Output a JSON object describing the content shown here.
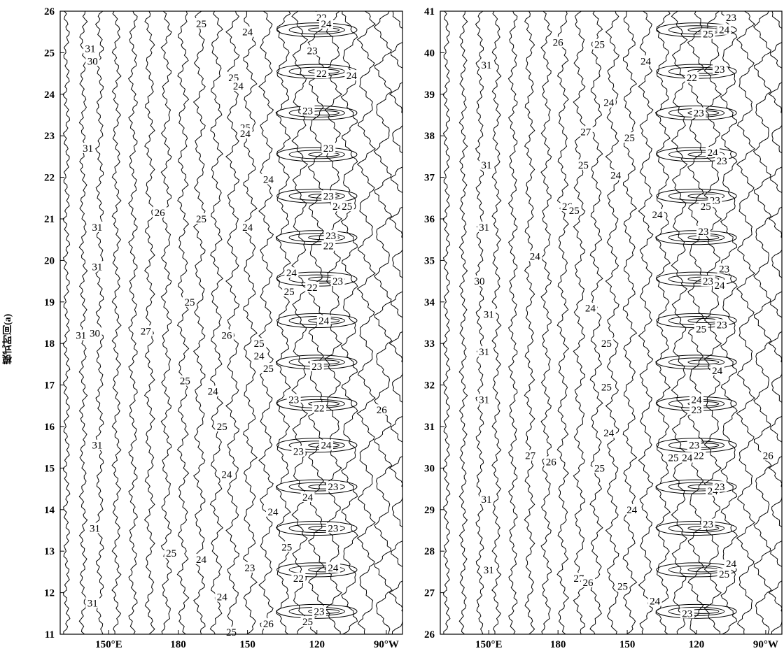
{
  "chart_data": [
    {
      "type": "contour",
      "ylabel": "模式时间(a)",
      "ylim": [
        11,
        26
      ],
      "yticks": [
        11,
        12,
        13,
        14,
        15,
        16,
        17,
        18,
        19,
        20,
        21,
        22,
        23,
        24,
        25,
        26
      ],
      "xlabels": [
        "150°E",
        "180",
        "150",
        "120",
        "90°W"
      ],
      "contour_labels": [
        {
          "v": "31",
          "lon": 142,
          "yr": 25.1
        },
        {
          "v": "30",
          "lon": 143,
          "yr": 24.8
        },
        {
          "v": "25",
          "lon": 190,
          "yr": 25.7
        },
        {
          "v": "24",
          "lon": 210,
          "yr": 25.5
        },
        {
          "v": "22",
          "lon": 242,
          "yr": 25.85
        },
        {
          "v": "24",
          "lon": 244,
          "yr": 25.7
        },
        {
          "v": "23",
          "lon": 238,
          "yr": 25.05
        },
        {
          "v": "22",
          "lon": 242,
          "yr": 24.5
        },
        {
          "v": "24",
          "lon": 255,
          "yr": 24.45
        },
        {
          "v": "25",
          "lon": 204,
          "yr": 24.4
        },
        {
          "v": "24",
          "lon": 206,
          "yr": 24.2
        },
        {
          "v": "23",
          "lon": 236,
          "yr": 23.6
        },
        {
          "v": "31",
          "lon": 141,
          "yr": 22.7
        },
        {
          "v": "25",
          "lon": 209,
          "yr": 23.2
        },
        {
          "v": "24",
          "lon": 209,
          "yr": 23.05
        },
        {
          "v": "23",
          "lon": 245,
          "yr": 22.7
        },
        {
          "v": "24",
          "lon": 219,
          "yr": 21.95
        },
        {
          "v": "23",
          "lon": 245,
          "yr": 21.55
        },
        {
          "v": "24",
          "lon": 249,
          "yr": 21.3
        },
        {
          "v": "25",
          "lon": 253,
          "yr": 21.3
        },
        {
          "v": "26",
          "lon": 172,
          "yr": 21.15
        },
        {
          "v": "25",
          "lon": 190,
          "yr": 21.0
        },
        {
          "v": "24",
          "lon": 210,
          "yr": 20.8
        },
        {
          "v": "31",
          "lon": 145,
          "yr": 20.8
        },
        {
          "v": "23",
          "lon": 246,
          "yr": 20.6
        },
        {
          "v": "22",
          "lon": 245,
          "yr": 20.35
        },
        {
          "v": "31",
          "lon": 145,
          "yr": 19.85
        },
        {
          "v": "24",
          "lon": 229,
          "yr": 19.7
        },
        {
          "v": "23",
          "lon": 249,
          "yr": 19.5
        },
        {
          "v": "22",
          "lon": 238,
          "yr": 19.35
        },
        {
          "v": "25",
          "lon": 228,
          "yr": 19.25
        },
        {
          "v": "25",
          "lon": 185,
          "yr": 19.0
        },
        {
          "v": "24",
          "lon": 243,
          "yr": 18.55
        },
        {
          "v": "31",
          "lon": 138,
          "yr": 18.2
        },
        {
          "v": "30",
          "lon": 144,
          "yr": 18.25
        },
        {
          "v": "27",
          "lon": 166,
          "yr": 18.3
        },
        {
          "v": "26",
          "lon": 201,
          "yr": 18.2
        },
        {
          "v": "25",
          "lon": 215,
          "yr": 18.0
        },
        {
          "v": "24",
          "lon": 215,
          "yr": 17.7
        },
        {
          "v": "25",
          "lon": 219,
          "yr": 17.4
        },
        {
          "v": "23",
          "lon": 240,
          "yr": 17.45
        },
        {
          "v": "25",
          "lon": 183,
          "yr": 17.1
        },
        {
          "v": "24",
          "lon": 195,
          "yr": 16.85
        },
        {
          "v": "23",
          "lon": 230,
          "yr": 16.65
        },
        {
          "v": "22",
          "lon": 241,
          "yr": 16.45
        },
        {
          "v": "26",
          "lon": 268,
          "yr": 16.4
        },
        {
          "v": "25",
          "lon": 199,
          "yr": 16.0
        },
        {
          "v": "31",
          "lon": 145,
          "yr": 15.55
        },
        {
          "v": "24",
          "lon": 244,
          "yr": 15.55
        },
        {
          "v": "23",
          "lon": 232,
          "yr": 15.4
        },
        {
          "v": "24",
          "lon": 201,
          "yr": 14.85
        },
        {
          "v": "23",
          "lon": 247,
          "yr": 14.55
        },
        {
          "v": "24",
          "lon": 236,
          "yr": 14.3
        },
        {
          "v": "24",
          "lon": 221,
          "yr": 13.95
        },
        {
          "v": "31",
          "lon": 144,
          "yr": 13.55
        },
        {
          "v": "23",
          "lon": 247,
          "yr": 13.55
        },
        {
          "v": "25",
          "lon": 227,
          "yr": 13.1
        },
        {
          "v": "25",
          "lon": 177,
          "yr": 12.95
        },
        {
          "v": "24",
          "lon": 190,
          "yr": 12.8
        },
        {
          "v": "23",
          "lon": 211,
          "yr": 12.6
        },
        {
          "v": "24",
          "lon": 247,
          "yr": 12.6
        },
        {
          "v": "22",
          "lon": 232,
          "yr": 12.35
        },
        {
          "v": "24",
          "lon": 199,
          "yr": 11.9
        },
        {
          "v": "31",
          "lon": 143,
          "yr": 11.75
        },
        {
          "v": "23",
          "lon": 241,
          "yr": 11.55
        },
        {
          "v": "25",
          "lon": 236,
          "yr": 11.3
        },
        {
          "v": "26",
          "lon": 219,
          "yr": 11.25
        },
        {
          "v": "25",
          "lon": 203,
          "yr": 11.05
        }
      ]
    },
    {
      "type": "contour",
      "ylim": [
        26,
        41
      ],
      "yticks": [
        26,
        27,
        28,
        29,
        30,
        31,
        32,
        33,
        34,
        35,
        36,
        37,
        38,
        39,
        40,
        41
      ],
      "xlabels": [
        "150°E",
        "180",
        "150",
        "120",
        "90°W"
      ],
      "contour_labels": [
        {
          "v": "23",
          "lon": 255,
          "yr": 40.85
        },
        {
          "v": "24",
          "lon": 252,
          "yr": 40.55
        },
        {
          "v": "25",
          "lon": 245,
          "yr": 40.45
        },
        {
          "v": "26",
          "lon": 180,
          "yr": 40.25
        },
        {
          "v": "25",
          "lon": 198,
          "yr": 40.2
        },
        {
          "v": "31",
          "lon": 149,
          "yr": 39.7
        },
        {
          "v": "24",
          "lon": 218,
          "yr": 39.8
        },
        {
          "v": "23",
          "lon": 250,
          "yr": 39.6
        },
        {
          "v": "22",
          "lon": 238,
          "yr": 39.4
        },
        {
          "v": "24",
          "lon": 202,
          "yr": 38.8
        },
        {
          "v": "23",
          "lon": 241,
          "yr": 38.55
        },
        {
          "v": "27",
          "lon": 192,
          "yr": 38.1
        },
        {
          "v": "25",
          "lon": 211,
          "yr": 37.95
        },
        {
          "v": "31",
          "lon": 149,
          "yr": 37.3
        },
        {
          "v": "24",
          "lon": 247,
          "yr": 37.6
        },
        {
          "v": "23",
          "lon": 251,
          "yr": 37.4
        },
        {
          "v": "25",
          "lon": 191,
          "yr": 37.3
        },
        {
          "v": "24",
          "lon": 205,
          "yr": 37.05
        },
        {
          "v": "23",
          "lon": 248,
          "yr": 36.45
        },
        {
          "v": "25",
          "lon": 244,
          "yr": 36.3
        },
        {
          "v": "26",
          "lon": 184,
          "yr": 36.3
        },
        {
          "v": "25",
          "lon": 187,
          "yr": 36.2
        },
        {
          "v": "24",
          "lon": 223,
          "yr": 36.1
        },
        {
          "v": "31",
          "lon": 148,
          "yr": 35.8
        },
        {
          "v": "23",
          "lon": 243,
          "yr": 35.7
        },
        {
          "v": "24",
          "lon": 170,
          "yr": 35.1
        },
        {
          "v": "30",
          "lon": 146,
          "yr": 34.5
        },
        {
          "v": "23",
          "lon": 252,
          "yr": 34.8
        },
        {
          "v": "23",
          "lon": 245,
          "yr": 34.5
        },
        {
          "v": "24",
          "lon": 250,
          "yr": 34.4
        },
        {
          "v": "24",
          "lon": 194,
          "yr": 33.85
        },
        {
          "v": "31",
          "lon": 150,
          "yr": 33.7
        },
        {
          "v": "25",
          "lon": 242,
          "yr": 33.35
        },
        {
          "v": "23",
          "lon": 251,
          "yr": 33.45
        },
        {
          "v": "25",
          "lon": 201,
          "yr": 33.0
        },
        {
          "v": "31",
          "lon": 148,
          "yr": 32.8
        },
        {
          "v": "24",
          "lon": 249,
          "yr": 32.35
        },
        {
          "v": "25",
          "lon": 201,
          "yr": 31.95
        },
        {
          "v": "31",
          "lon": 148,
          "yr": 31.65
        },
        {
          "v": "24",
          "lon": 240,
          "yr": 31.65
        },
        {
          "v": "23",
          "lon": 240,
          "yr": 31.4
        },
        {
          "v": "24",
          "lon": 202,
          "yr": 30.85
        },
        {
          "v": "23",
          "lon": 239,
          "yr": 30.55
        },
        {
          "v": "22",
          "lon": 241,
          "yr": 30.3
        },
        {
          "v": "25",
          "lon": 230,
          "yr": 30.25
        },
        {
          "v": "24",
          "lon": 236,
          "yr": 30.25
        },
        {
          "v": "27",
          "lon": 168,
          "yr": 30.3
        },
        {
          "v": "26",
          "lon": 177,
          "yr": 30.15
        },
        {
          "v": "25",
          "lon": 198,
          "yr": 30.0
        },
        {
          "v": "26",
          "lon": 271,
          "yr": 30.3
        },
        {
          "v": "31",
          "lon": 149,
          "yr": 29.25
        },
        {
          "v": "24",
          "lon": 247,
          "yr": 29.45
        },
        {
          "v": "23",
          "lon": 250,
          "yr": 29.55
        },
        {
          "v": "24",
          "lon": 212,
          "yr": 29.0
        },
        {
          "v": "23",
          "lon": 245,
          "yr": 28.65
        },
        {
          "v": "31",
          "lon": 150,
          "yr": 27.55
        },
        {
          "v": "24",
          "lon": 255,
          "yr": 27.7
        },
        {
          "v": "25",
          "lon": 252,
          "yr": 27.45
        },
        {
          "v": "27",
          "lon": 189,
          "yr": 27.35
        },
        {
          "v": "26",
          "lon": 193,
          "yr": 27.25
        },
        {
          "v": "25",
          "lon": 208,
          "yr": 27.15
        },
        {
          "v": "24",
          "lon": 222,
          "yr": 26.8
        },
        {
          "v": "23",
          "lon": 236,
          "yr": 26.5
        }
      ]
    }
  ]
}
